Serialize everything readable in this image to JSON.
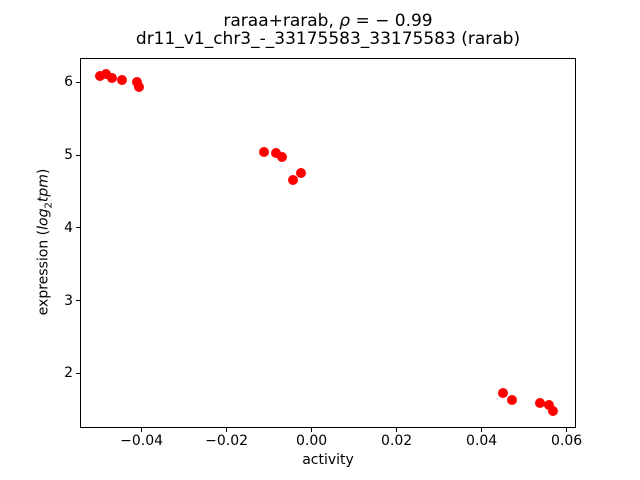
{
  "figure": {
    "title_prefix": "raraa+rarab, ",
    "title_rho": "ρ",
    "title_rho_suffix": " = − 0.99",
    "subtitle": "dr11_v1_chr3_-_33175583_33175583 (rarab)",
    "xlabel": "activity",
    "ylabel_prefix": "expression (",
    "ylabel_log": "log",
    "ylabel_sub": "2",
    "ylabel_tpm": "tpm",
    "ylabel_suffix": ")"
  },
  "chart_data": {
    "type": "scatter",
    "title": "raraa+rarab, ρ = −0.99",
    "subtitle": "dr11_v1_chr3_-_33175583_33175583 (rarab)",
    "xlabel": "activity",
    "ylabel": "expression (log2tpm)",
    "marker_color": "#ff0000",
    "axis_color": "#000000",
    "background_color": "#ffffff",
    "grid": false,
    "legend": false,
    "xlim": [
      -0.0545,
      0.0622
    ],
    "ylim": [
      1.26,
      6.34
    ],
    "x_ticks": [
      -0.04,
      -0.02,
      0.0,
      0.02,
      0.04,
      0.06
    ],
    "x_tick_labels": [
      "−0.04",
      "−0.02",
      "0.00",
      "0.02",
      "0.04",
      "0.06"
    ],
    "y_ticks": [
      2,
      3,
      4,
      5,
      6
    ],
    "y_tick_labels": [
      "2",
      "3",
      "4",
      "5",
      "6"
    ],
    "points": [
      {
        "x": -0.0497,
        "y": 6.09
      },
      {
        "x": -0.0483,
        "y": 6.11
      },
      {
        "x": -0.047,
        "y": 6.06
      },
      {
        "x": -0.0446,
        "y": 6.03
      },
      {
        "x": -0.0411,
        "y": 6.0
      },
      {
        "x": -0.0406,
        "y": 5.93
      },
      {
        "x": -0.0111,
        "y": 5.04
      },
      {
        "x": -0.0085,
        "y": 5.03
      },
      {
        "x": -0.0069,
        "y": 4.98
      },
      {
        "x": -0.0024,
        "y": 4.76
      },
      {
        "x": -0.0043,
        "y": 4.66
      },
      {
        "x": 0.0451,
        "y": 1.73
      },
      {
        "x": 0.0471,
        "y": 1.64
      },
      {
        "x": 0.0537,
        "y": 1.59
      },
      {
        "x": 0.0558,
        "y": 1.56
      },
      {
        "x": 0.0569,
        "y": 1.48
      }
    ]
  }
}
